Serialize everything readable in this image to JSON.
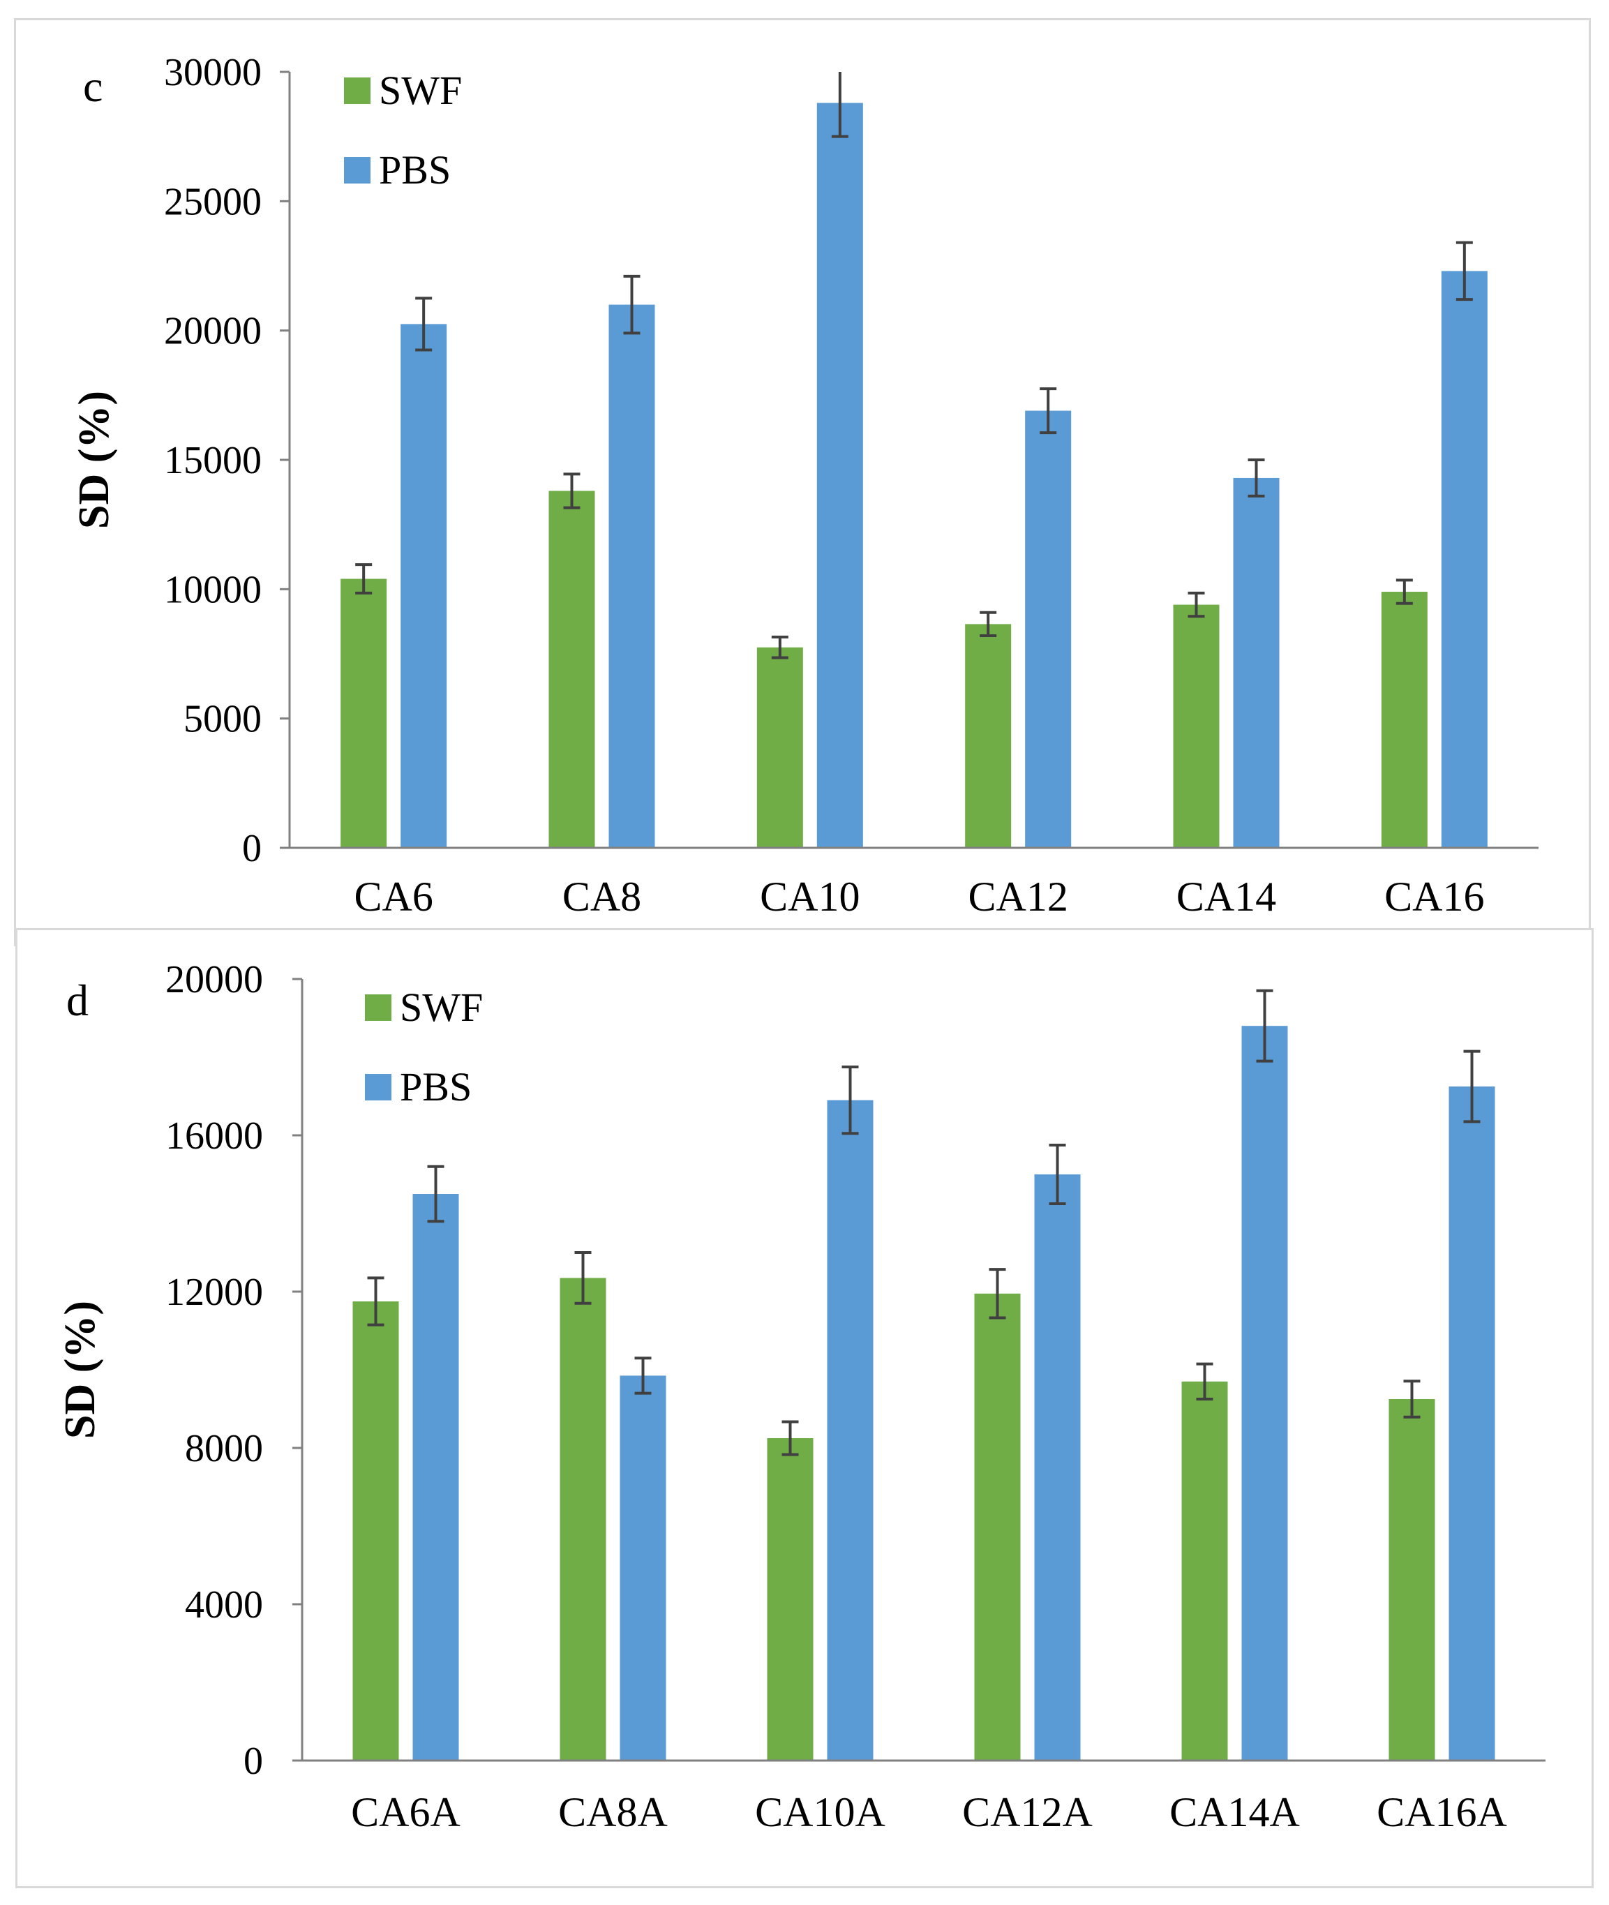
{
  "chart_data": [
    {
      "type": "bar",
      "panel_label": "c",
      "categories": [
        "CA6",
        "CA8",
        "CA10",
        "CA12",
        "CA14",
        "CA16"
      ],
      "series": [
        {
          "name": "SWF",
          "color": "#70ad47",
          "values": [
            10400,
            13800,
            7750,
            8650,
            9400,
            9900
          ],
          "errors": [
            550,
            650,
            400,
            450,
            450,
            450
          ]
        },
        {
          "name": "PBS",
          "color": "#5b9bd5",
          "values": [
            20250,
            21000,
            28800,
            16900,
            14300,
            22300
          ],
          "errors": [
            1000,
            1100,
            1300,
            850,
            700,
            1100
          ]
        }
      ],
      "ylabel": "SD (%)",
      "xlabel": "",
      "ylim": [
        0,
        30000
      ],
      "yticks": [
        0,
        5000,
        10000,
        15000,
        20000,
        25000,
        30000
      ],
      "ytick_labels": [
        "0",
        "5000",
        "10000",
        "15000",
        "20000",
        "25000",
        "30000"
      ],
      "legend_position": "top-left"
    },
    {
      "type": "bar",
      "panel_label": "d",
      "categories": [
        "CA6A",
        "CA8A",
        "CA10A",
        "CA12A",
        "CA14A",
        "CA16A"
      ],
      "series": [
        {
          "name": "SWF",
          "color": "#70ad47",
          "values": [
            11750,
            12350,
            8250,
            11950,
            9700,
            9250
          ],
          "errors": [
            600,
            650,
            420,
            620,
            450,
            460
          ]
        },
        {
          "name": "PBS",
          "color": "#5b9bd5",
          "values": [
            14500,
            9850,
            16900,
            15000,
            18800,
            17250
          ],
          "errors": [
            700,
            450,
            850,
            750,
            900,
            900
          ]
        }
      ],
      "ylabel": "SD (%)",
      "xlabel": "",
      "ylim": [
        0,
        20000
      ],
      "yticks": [
        0,
        4000,
        8000,
        12000,
        16000,
        20000
      ],
      "ytick_labels": [
        "0",
        "4000",
        "8000",
        "12000",
        "16000",
        "20000"
      ],
      "legend_position": "top-left"
    }
  ]
}
